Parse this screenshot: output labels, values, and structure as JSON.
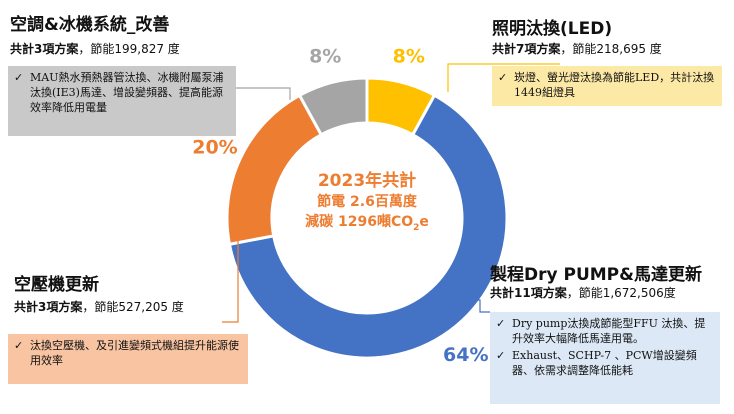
{
  "chart_data": {
    "type": "pie",
    "style": "donut",
    "categories": [
      "製程Dry PUMP&馬達更新",
      "空壓機更新",
      "空調&冰機系統_改善",
      "照明汰換(LED)"
    ],
    "values": [
      64,
      20,
      8,
      8
    ],
    "value_labels": [
      "64%",
      "20%",
      "8%",
      "8%"
    ],
    "colors": [
      "#4472c4",
      "#ed7d31",
      "#a5a5a5",
      "#ffc000"
    ],
    "center": {
      "line1": "2023年共計",
      "line2": "節電 2.6百萬度",
      "line3_prefix": "減碳 1296噸CO",
      "line3_sub": "2",
      "line3_suffix": "e"
    }
  },
  "categories": {
    "hvac": {
      "title": "空調&冰機系統_改善",
      "count": "共計3項方案",
      "saving": "，節能199,827 度",
      "bullets": [
        "MAU熱水預熱器管汰換、冰機附屬泵浦汰換(IE3)馬達、增設變頻器、提高能源效率降低用電量"
      ]
    },
    "lighting": {
      "title": "照明汰換(LED)",
      "count": "共計7項方案",
      "saving": "，節能218,695 度",
      "bullets": [
        "崁燈、螢光燈汰換為節能LED，共計汰換1449組燈具"
      ]
    },
    "compressor": {
      "title": "空壓機更新",
      "count": "共計3項方案",
      "saving": "，節能527,205 度",
      "bullets": [
        "汰換空壓機、及引進變頻式機組提升能源使用效率"
      ]
    },
    "pump": {
      "title": "製程Dry PUMP&馬達更新",
      "count": "共計11項方案",
      "saving": "，節能1,672,506度",
      "bullets": [
        "Dry pump汰換成節能型FFU 汰換、提升效率大幅降低馬達用電。",
        "Exhaust、SCHP-7 、PCW增設變頻器、依需求調整降低能耗"
      ]
    }
  },
  "icons": {
    "check": "✓"
  }
}
